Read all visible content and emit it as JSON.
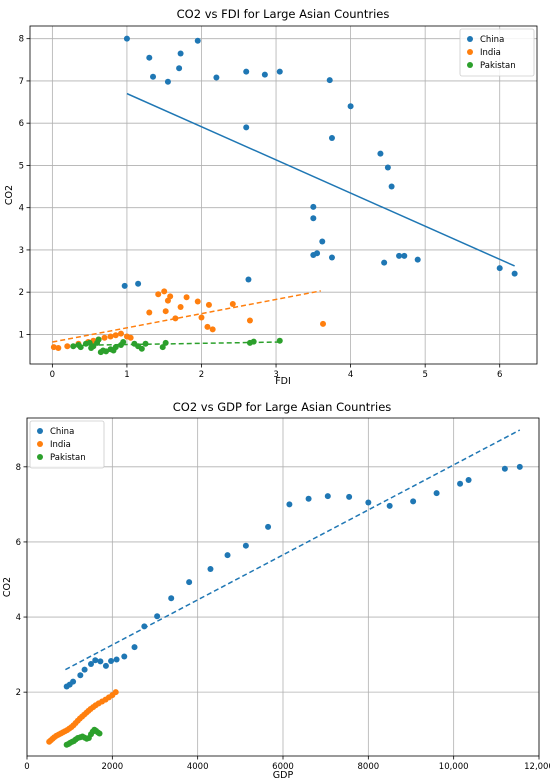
{
  "chart_data": [
    {
      "type": "scatter",
      "title": "CO2 vs FDI for Large Asian Countries",
      "xlabel": "FDI",
      "ylabel": "CO2",
      "xlim": [
        -0.3,
        6.5
      ],
      "ylim": [
        0.3,
        8.3
      ],
      "xticks": [
        "0",
        "1",
        "2",
        "3",
        "4",
        "5",
        "6"
      ],
      "yticks": [
        "1",
        "2",
        "3",
        "4",
        "5",
        "6",
        "7",
        "8"
      ],
      "grid": true,
      "legend_position": "top-right",
      "series": [
        {
          "name": "China",
          "color": "#1f77b4",
          "points": [
            [
              1.0,
              8.0
            ],
            [
              1.3,
              7.55
            ],
            [
              1.35,
              7.1
            ],
            [
              1.55,
              6.98
            ],
            [
              1.7,
              7.3
            ],
            [
              1.72,
              7.65
            ],
            [
              1.95,
              7.95
            ],
            [
              2.2,
              7.08
            ],
            [
              2.6,
              7.22
            ],
            [
              2.85,
              7.15
            ],
            [
              3.05,
              7.22
            ],
            [
              3.72,
              7.02
            ],
            [
              4.0,
              6.4
            ],
            [
              2.6,
              5.9
            ],
            [
              3.75,
              5.65
            ],
            [
              4.4,
              5.28
            ],
            [
              4.5,
              4.95
            ],
            [
              4.55,
              4.5
            ],
            [
              3.5,
              4.02
            ],
            [
              3.5,
              3.75
            ],
            [
              3.62,
              3.2
            ],
            [
              3.5,
              2.88
            ],
            [
              3.55,
              2.92
            ],
            [
              3.75,
              2.82
            ],
            [
              4.45,
              2.7
            ],
            [
              4.65,
              2.86
            ],
            [
              4.72,
              2.86
            ],
            [
              4.9,
              2.77
            ],
            [
              6.0,
              2.57
            ],
            [
              6.2,
              2.44
            ],
            [
              0.97,
              2.15
            ],
            [
              1.15,
              2.2
            ],
            [
              2.63,
              2.3
            ]
          ],
          "trend": {
            "x": [
              1.0,
              6.2
            ],
            "y": [
              6.7,
              2.62
            ],
            "style": "solid"
          }
        },
        {
          "name": "India",
          "color": "#ff7f0e",
          "points": [
            [
              0.02,
              0.7
            ],
            [
              0.08,
              0.68
            ],
            [
              0.2,
              0.72
            ],
            [
              0.35,
              0.78
            ],
            [
              0.48,
              0.82
            ],
            [
              0.55,
              0.85
            ],
            [
              0.62,
              0.88
            ],
            [
              0.7,
              0.92
            ],
            [
              0.78,
              0.95
            ],
            [
              0.85,
              0.98
            ],
            [
              0.92,
              1.02
            ],
            [
              1.0,
              0.95
            ],
            [
              1.05,
              0.92
            ],
            [
              1.3,
              1.52
            ],
            [
              1.42,
              1.95
            ],
            [
              1.5,
              2.02
            ],
            [
              1.52,
              1.55
            ],
            [
              1.55,
              1.8
            ],
            [
              1.58,
              1.9
            ],
            [
              1.65,
              1.38
            ],
            [
              1.72,
              1.65
            ],
            [
              1.8,
              1.88
            ],
            [
              1.95,
              1.78
            ],
            [
              2.0,
              1.4
            ],
            [
              2.08,
              1.18
            ],
            [
              2.1,
              1.7
            ],
            [
              2.15,
              1.12
            ],
            [
              2.42,
              1.72
            ],
            [
              2.65,
              1.33
            ],
            [
              3.63,
              1.25
            ]
          ],
          "trend": {
            "x": [
              0.0,
              3.6
            ],
            "y": [
              0.82,
              2.03
            ],
            "style": "dashed"
          }
        },
        {
          "name": "Pakistan",
          "color": "#2ca02c",
          "points": [
            [
              0.28,
              0.72
            ],
            [
              0.35,
              0.75
            ],
            [
              0.38,
              0.7
            ],
            [
              0.45,
              0.78
            ],
            [
              0.5,
              0.8
            ],
            [
              0.52,
              0.68
            ],
            [
              0.55,
              0.72
            ],
            [
              0.6,
              0.8
            ],
            [
              0.62,
              0.88
            ],
            [
              0.65,
              0.58
            ],
            [
              0.68,
              0.62
            ],
            [
              0.72,
              0.6
            ],
            [
              0.78,
              0.65
            ],
            [
              0.82,
              0.62
            ],
            [
              0.85,
              0.7
            ],
            [
              0.92,
              0.75
            ],
            [
              0.95,
              0.82
            ],
            [
              1.1,
              0.78
            ],
            [
              1.15,
              0.72
            ],
            [
              1.2,
              0.66
            ],
            [
              1.25,
              0.78
            ],
            [
              1.48,
              0.7
            ],
            [
              1.52,
              0.8
            ],
            [
              2.65,
              0.8
            ],
            [
              2.7,
              0.83
            ],
            [
              3.05,
              0.85
            ]
          ],
          "trend": {
            "x": [
              0.3,
              3.05
            ],
            "y": [
              0.74,
              0.82
            ],
            "style": "dashed"
          }
        }
      ]
    },
    {
      "type": "scatter",
      "title": "CO2 vs GDP for Large Asian Countries",
      "xlabel": "GDP",
      "ylabel": "CO2",
      "xlim": [
        0,
        12000
      ],
      "ylim": [
        0.3,
        9.3
      ],
      "xticks": [
        "0",
        "2000",
        "4000",
        "6000",
        "8000",
        "10,000",
        "12,000"
      ],
      "yticks": [
        "2",
        "4",
        "6",
        "8"
      ],
      "grid": true,
      "legend_position": "top-left",
      "series": [
        {
          "name": "China",
          "color": "#1f77b4",
          "points": [
            [
              930,
              2.15
            ],
            [
              1000,
              2.2
            ],
            [
              1080,
              2.28
            ],
            [
              1250,
              2.45
            ],
            [
              1350,
              2.6
            ],
            [
              1500,
              2.75
            ],
            [
              1600,
              2.85
            ],
            [
              1720,
              2.82
            ],
            [
              1850,
              2.7
            ],
            [
              1970,
              2.83
            ],
            [
              2100,
              2.87
            ],
            [
              2280,
              2.95
            ],
            [
              2520,
              3.2
            ],
            [
              2750,
              3.75
            ],
            [
              3050,
              4.02
            ],
            [
              3380,
              4.5
            ],
            [
              3800,
              4.93
            ],
            [
              4300,
              5.28
            ],
            [
              4700,
              5.65
            ],
            [
              5130,
              5.9
            ],
            [
              5650,
              6.4
            ],
            [
              6150,
              7.0
            ],
            [
              6600,
              7.15
            ],
            [
              7050,
              7.22
            ],
            [
              7550,
              7.2
            ],
            [
              8000,
              7.05
            ],
            [
              8500,
              6.96
            ],
            [
              9050,
              7.08
            ],
            [
              9600,
              7.3
            ],
            [
              10150,
              7.55
            ],
            [
              10350,
              7.65
            ],
            [
              11200,
              7.95
            ],
            [
              11550,
              8.0
            ]
          ],
          "trend": {
            "x": [
              900,
              11550
            ],
            "y": [
              2.6,
              8.98
            ],
            "style": "dashed"
          }
        },
        {
          "name": "India",
          "color": "#ff7f0e",
          "points": [
            [
              520,
              0.68
            ],
            [
              560,
              0.72
            ],
            [
              600,
              0.76
            ],
            [
              640,
              0.8
            ],
            [
              690,
              0.84
            ],
            [
              740,
              0.87
            ],
            [
              790,
              0.9
            ],
            [
              840,
              0.93
            ],
            [
              890,
              0.96
            ],
            [
              940,
              0.99
            ],
            [
              990,
              1.03
            ],
            [
              1040,
              1.07
            ],
            [
              1090,
              1.12
            ],
            [
              1140,
              1.18
            ],
            [
              1190,
              1.24
            ],
            [
              1240,
              1.3
            ],
            [
              1290,
              1.35
            ],
            [
              1340,
              1.4
            ],
            [
              1390,
              1.45
            ],
            [
              1440,
              1.5
            ],
            [
              1490,
              1.55
            ],
            [
              1550,
              1.6
            ],
            [
              1610,
              1.65
            ],
            [
              1680,
              1.7
            ],
            [
              1760,
              1.75
            ],
            [
              1840,
              1.8
            ],
            [
              1920,
              1.86
            ],
            [
              2000,
              1.92
            ],
            [
              2080,
              2.0
            ]
          ],
          "trend": null
        },
        {
          "name": "Pakistan",
          "color": "#2ca02c",
          "points": [
            [
              930,
              0.6
            ],
            [
              970,
              0.62
            ],
            [
              1010,
              0.65
            ],
            [
              1060,
              0.68
            ],
            [
              1100,
              0.7
            ],
            [
              1140,
              0.74
            ],
            [
              1190,
              0.78
            ],
            [
              1250,
              0.8
            ],
            [
              1300,
              0.82
            ],
            [
              1350,
              0.79
            ],
            [
              1400,
              0.76
            ],
            [
              1450,
              0.78
            ],
            [
              1500,
              0.88
            ],
            [
              1540,
              0.95
            ],
            [
              1580,
              1.0
            ],
            [
              1620,
              0.97
            ],
            [
              1660,
              0.93
            ],
            [
              1700,
              0.9
            ]
          ],
          "trend": null
        }
      ]
    }
  ]
}
